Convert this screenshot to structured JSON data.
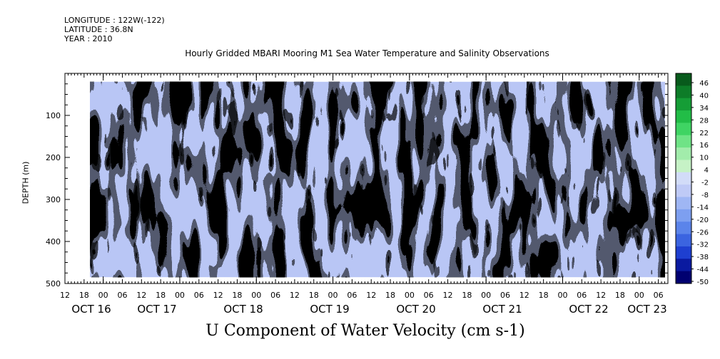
{
  "header": {
    "longitude": "LONGITUDE : 122W(-122)",
    "latitude": "LATITUDE : 36.8N",
    "year": "YEAR : 2010",
    "title": "Hourly Gridded MBARI Mooring M1 Sea Water Temperature and Salinity Observations"
  },
  "chart_data": {
    "type": "heatmap",
    "title": "Hourly Gridded MBARI Mooring M1 Sea Water Temperature and Salinity Observations",
    "xlabel": "",
    "ylabel": "DEPTH (m)",
    "variable": "U Component of Water Velocity (cm s-1)",
    "y_ticks": [
      100,
      200,
      300,
      400,
      500
    ],
    "y_range": [
      500,
      0
    ],
    "data_depth_range": [
      20,
      485
    ],
    "x_hour_ticks": [
      "12",
      "18",
      "00",
      "06",
      "12",
      "18",
      "00",
      "06",
      "12",
      "18",
      "00",
      "06",
      "12",
      "18",
      "00",
      "06",
      "12",
      "18",
      "00",
      "06",
      "12",
      "18",
      "00",
      "06",
      "12",
      "18",
      "00",
      "06",
      "12",
      "18",
      "00",
      "06"
    ],
    "x_day_labels": [
      "OCT 16",
      "OCT 17",
      "OCT 18",
      "OCT 19",
      "OCT 20",
      "OCT 21",
      "OCT 22",
      "OCT 23"
    ],
    "x_range_hours": [
      "OCT 15 12:00",
      "OCT 23 09:00"
    ],
    "colorbar_labels": [
      "46",
      "40",
      "34",
      "28",
      "22",
      "16",
      "10",
      "4",
      "-2",
      "-8",
      "-14",
      "-20",
      "-26",
      "-32",
      "-38",
      "-44",
      "-50"
    ],
    "colorbar_range": [
      -50,
      52
    ],
    "colormap": [
      "#000070",
      "#0a1aa0",
      "#1e3fd0",
      "#3b64e0",
      "#5b84ea",
      "#7d9ff0",
      "#9fb6f4",
      "#bfcaf6",
      "#d2dcf8",
      "#c6f2c6",
      "#a2ecab",
      "#6fe386",
      "#3fd463",
      "#22bd47",
      "#159d36",
      "#0d7c28",
      "#085a1c"
    ]
  },
  "footer": {
    "variable_title": "U Component of Water Velocity (cm s-1)"
  }
}
